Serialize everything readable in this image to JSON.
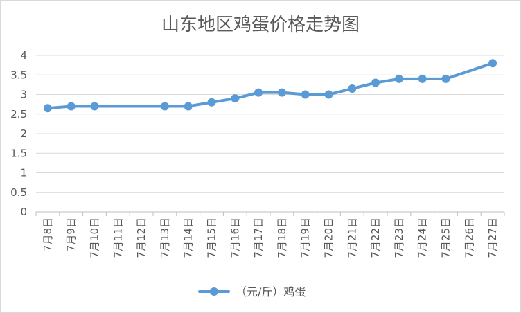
{
  "chart_data": {
    "type": "line",
    "title": "山东地区鸡蛋价格走势图",
    "categories": [
      "7月8日",
      "7月9日",
      "7月10日",
      "7月11日",
      "7月12日",
      "7月13日",
      "7月14日",
      "7月15日",
      "7月16日",
      "7月17日",
      "7月18日",
      "7月19日",
      "7月20日",
      "7月21日",
      "7月22日",
      "7月23日",
      "7月24日",
      "7月25日",
      "7月26日",
      "7月27日"
    ],
    "series": [
      {
        "name": "（元/斤）鸡蛋",
        "color": "#5b9bd5",
        "values": [
          2.65,
          2.7,
          2.7,
          null,
          null,
          2.7,
          2.7,
          2.8,
          2.9,
          3.05,
          3.05,
          3.0,
          3.0,
          3.15,
          3.3,
          3.4,
          3.4,
          3.4,
          null,
          3.8
        ]
      }
    ],
    "ylim": [
      0,
      4
    ],
    "yticks": [
      "0",
      "0.5",
      "1",
      "1.5",
      "2",
      "2.5",
      "3",
      "3.5",
      "4"
    ],
    "grid": true,
    "legend": "bottom",
    "xlabel": "",
    "ylabel": ""
  },
  "colors": {
    "series": "#5b9bd5",
    "grid": "#d9d9d9",
    "axis": "#bfbfbf",
    "text": "#595959"
  }
}
